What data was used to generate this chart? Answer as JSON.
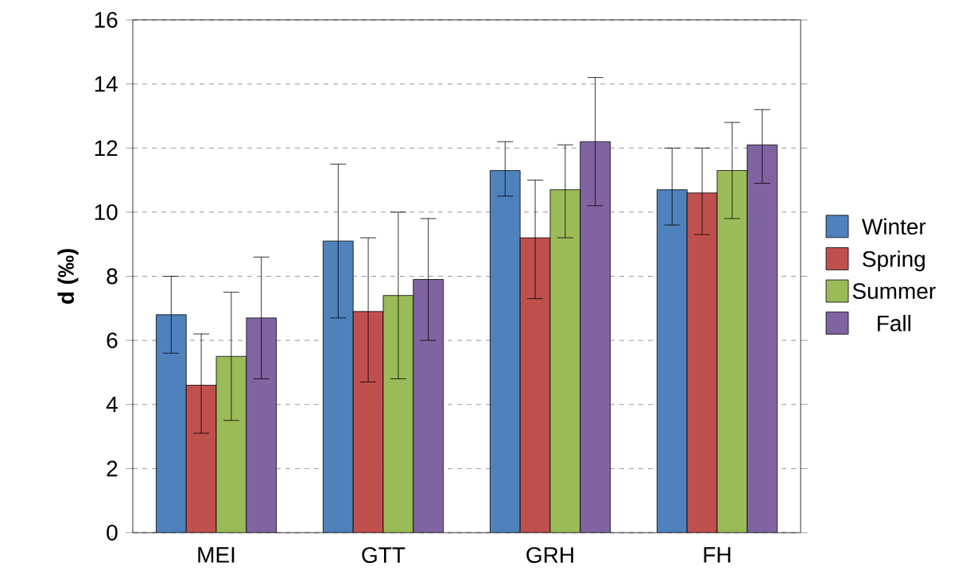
{
  "chart_data": {
    "type": "bar",
    "ylabel": "d (‰)",
    "categories": [
      "MEI",
      "GTT",
      "GRH",
      "FH"
    ],
    "series": [
      {
        "name": "Winter",
        "color": "#4f81bd",
        "values": [
          6.8,
          9.1,
          11.3,
          10.7
        ],
        "errors": [
          [
            5.6,
            8.0
          ],
          [
            6.7,
            11.5
          ],
          [
            10.5,
            12.2
          ],
          [
            9.6,
            12.0
          ]
        ]
      },
      {
        "name": "Spring",
        "color": "#c0504d",
        "values": [
          4.6,
          6.9,
          9.2,
          10.6
        ],
        "errors": [
          [
            3.1,
            6.2
          ],
          [
            4.7,
            9.2
          ],
          [
            7.3,
            11.0
          ],
          [
            9.3,
            12.0
          ]
        ]
      },
      {
        "name": "Summer",
        "color": "#9bbb59",
        "values": [
          5.5,
          7.4,
          10.7,
          11.3
        ],
        "errors": [
          [
            3.5,
            7.5
          ],
          [
            4.8,
            10.0
          ],
          [
            9.2,
            12.1
          ],
          [
            9.8,
            12.8
          ]
        ]
      },
      {
        "name": "Fall",
        "color": "#8064a2",
        "values": [
          6.7,
          7.9,
          12.2,
          12.1
        ],
        "errors": [
          [
            4.8,
            8.6
          ],
          [
            6.0,
            9.8
          ],
          [
            10.2,
            14.2
          ],
          [
            10.9,
            13.2
          ]
        ]
      }
    ],
    "ylim": [
      0,
      16
    ],
    "yticks": [
      0,
      2,
      4,
      6,
      8,
      10,
      12,
      14,
      16
    ],
    "grid": "y",
    "legend": "right"
  }
}
